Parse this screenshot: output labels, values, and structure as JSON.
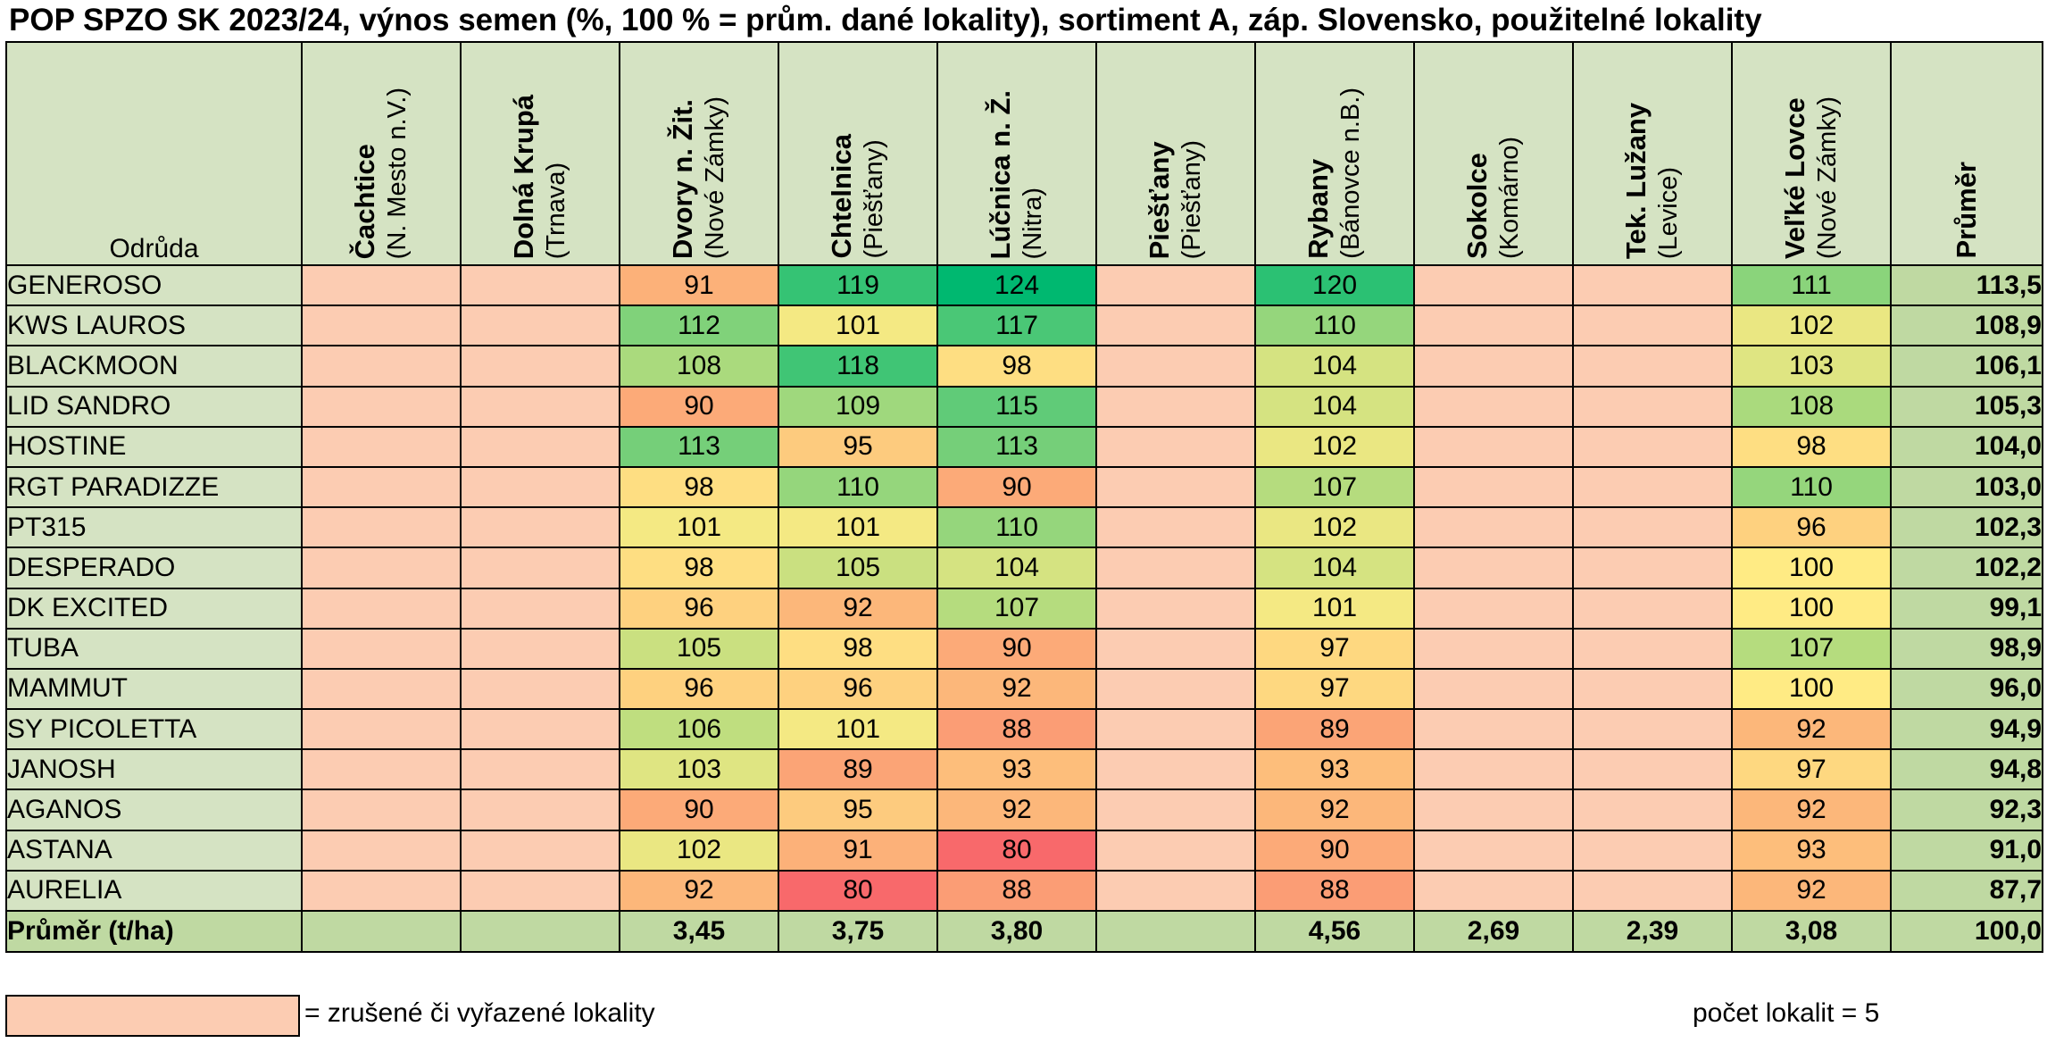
{
  "title": "POP SPZO SK 2023/24, výnos semen (%, 100 % = prům. dané lokality), sortiment A, záp. Slovensko, použitelné lokality",
  "header": {
    "variety_label": "Odrůda",
    "avg_label": "Průměr",
    "locations": [
      {
        "name": "Čachtice",
        "region": "(N. Mesto n.V.)"
      },
      {
        "name": "Dolná Krupá",
        "region": "(Trnava)"
      },
      {
        "name": "Dvory n. Žit.",
        "region": "(Nové Zámky)"
      },
      {
        "name": "Chtelnica",
        "region": "(Piešťany)"
      },
      {
        "name": "Lúčnica n. Ž.",
        "region": "(Nitra)"
      },
      {
        "name": "Piešťany",
        "region": "(Piešťany)"
      },
      {
        "name": "Rybany",
        "region": "(Bánovce n.B.)"
      },
      {
        "name": "Sokolce",
        "region": "(Komárno)"
      },
      {
        "name": "Tek. Lužany",
        "region": "(Levice)"
      },
      {
        "name": "Veľké Lovce",
        "region": "(Nové Zámky)"
      }
    ]
  },
  "rows": [
    {
      "name": "GENEROSO",
      "values": [
        "",
        "",
        "91",
        "119",
        "124",
        "",
        "120",
        "",
        "",
        "111"
      ],
      "avg": "113,5"
    },
    {
      "name": "KWS LAUROS",
      "values": [
        "",
        "",
        "112",
        "101",
        "117",
        "",
        "110",
        "",
        "",
        "102"
      ],
      "avg": "108,9"
    },
    {
      "name": "BLACKMOON",
      "values": [
        "",
        "",
        "108",
        "118",
        "98",
        "",
        "104",
        "",
        "",
        "103"
      ],
      "avg": "106,1"
    },
    {
      "name": "LID SANDRO",
      "values": [
        "",
        "",
        "90",
        "109",
        "115",
        "",
        "104",
        "",
        "",
        "108"
      ],
      "avg": "105,3"
    },
    {
      "name": "HOSTINE",
      "values": [
        "",
        "",
        "113",
        "95",
        "113",
        "",
        "102",
        "",
        "",
        "98"
      ],
      "avg": "104,0"
    },
    {
      "name": "RGT PARADIZZE",
      "values": [
        "",
        "",
        "98",
        "110",
        "90",
        "",
        "107",
        "",
        "",
        "110"
      ],
      "avg": "103,0"
    },
    {
      "name": "PT315",
      "values": [
        "",
        "",
        "101",
        "101",
        "110",
        "",
        "102",
        "",
        "",
        "96"
      ],
      "avg": "102,3"
    },
    {
      "name": "DESPERADO",
      "values": [
        "",
        "",
        "98",
        "105",
        "104",
        "",
        "104",
        "",
        "",
        "100"
      ],
      "avg": "102,2"
    },
    {
      "name": "DK EXCITED",
      "values": [
        "",
        "",
        "96",
        "92",
        "107",
        "",
        "101",
        "",
        "",
        "100"
      ],
      "avg": "99,1"
    },
    {
      "name": "TUBA",
      "values": [
        "",
        "",
        "105",
        "98",
        "90",
        "",
        "97",
        "",
        "",
        "107"
      ],
      "avg": "98,9"
    },
    {
      "name": "MAMMUT",
      "values": [
        "",
        "",
        "96",
        "96",
        "92",
        "",
        "97",
        "",
        "",
        "100"
      ],
      "avg": "96,0"
    },
    {
      "name": "SY PICOLETTA",
      "values": [
        "",
        "",
        "106",
        "101",
        "88",
        "",
        "89",
        "",
        "",
        "92"
      ],
      "avg": "94,9"
    },
    {
      "name": "JANOSH",
      "values": [
        "",
        "",
        "103",
        "89",
        "93",
        "",
        "93",
        "",
        "",
        "97"
      ],
      "avg": "94,8"
    },
    {
      "name": "AGANOS",
      "values": [
        "",
        "",
        "90",
        "95",
        "92",
        "",
        "92",
        "",
        "",
        "92"
      ],
      "avg": "92,3"
    },
    {
      "name": "ASTANA",
      "values": [
        "",
        "",
        "102",
        "91",
        "80",
        "",
        "90",
        "",
        "",
        "93"
      ],
      "avg": "91,0"
    },
    {
      "name": "AURELIA",
      "values": [
        "",
        "",
        "92",
        "80",
        "88",
        "",
        "88",
        "",
        "",
        "92"
      ],
      "avg": "87,7"
    }
  ],
  "footer": {
    "name": "Průměr (t/ha)",
    "values": [
      "",
      "",
      "3,45",
      "3,75",
      "3,80",
      "",
      "4,56",
      "2,69",
      "2,39",
      "3,08"
    ],
    "avg": "100,0"
  },
  "legend": {
    "text": "= zrušené či vyřazené lokality",
    "color": "#fcccb2"
  },
  "count": {
    "text": "počet lokalit =  5"
  },
  "colors": {
    "header_bg": "#d5e3c3",
    "avg_bg": "#bfd9a2",
    "blank_bg": "#fcccb2",
    "low": "#f8696b",
    "mid": "#ffeb84",
    "high": "#00b870"
  }
}
